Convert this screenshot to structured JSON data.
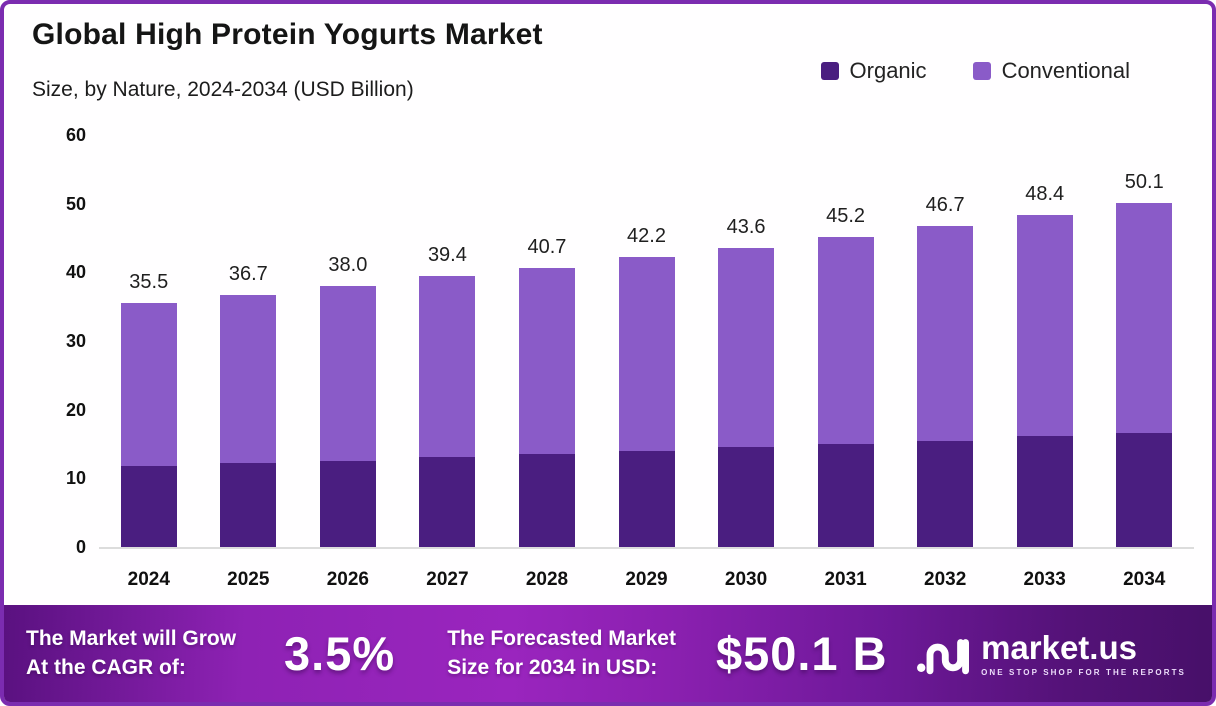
{
  "page": {
    "title": "Global High Protein Yogurts Market",
    "subtitle": "Size, by Nature, 2024-2034 (USD Billion)"
  },
  "legend": [
    {
      "label": "Organic",
      "color": "#4A1E80"
    },
    {
      "label": "Conventional",
      "color": "#8A5BC8"
    }
  ],
  "chart_data": {
    "type": "bar",
    "stacked": true,
    "categories": [
      "2024",
      "2025",
      "2026",
      "2027",
      "2028",
      "2029",
      "2030",
      "2031",
      "2032",
      "2033",
      "2034"
    ],
    "series": [
      {
        "name": "Organic",
        "color": "#4A1E80",
        "values": [
          11.8,
          12.2,
          12.6,
          13.1,
          13.5,
          14.0,
          14.5,
          15.0,
          15.5,
          16.1,
          16.6
        ]
      },
      {
        "name": "Conventional",
        "color": "#8A5BC8",
        "values": [
          23.7,
          24.5,
          25.4,
          26.3,
          27.2,
          28.2,
          29.1,
          30.2,
          31.2,
          32.3,
          33.5
        ]
      }
    ],
    "total_labels": [
      "35.5",
      "36.7",
      "38.0",
      "39.4",
      "40.7",
      "42.2",
      "43.6",
      "45.2",
      "46.7",
      "48.4",
      "50.1"
    ],
    "title": "Global High Protein Yogurts Market Size, by Nature, 2024-2034 (USD Billion)",
    "xlabel": "",
    "ylabel": "",
    "ylim": [
      0,
      60
    ],
    "yticks": [
      0,
      10,
      20,
      30,
      40,
      50,
      60
    ],
    "grid": false,
    "legend_position": "top-right"
  },
  "footer": {
    "cagr_line1": "The Market will Grow",
    "cagr_line2": "At the CAGR of:",
    "cagr_value": "3.5%",
    "forecast_line1": "The Forecasted Market",
    "forecast_line2": "Size for 2034 in USD:",
    "forecast_value": "$50.1 B",
    "brand_name": "market.us",
    "brand_tagline": "One Stop Shop For The Reports"
  },
  "colors": {
    "page_border": "#7B2CB0",
    "organic": "#4A1E80",
    "conventional": "#8A5BC8",
    "axis_line": "#dcdcdc",
    "footer_gradient_start": "#5a1180",
    "footer_gradient_mid": "#9a25be",
    "footer_gradient_end": "#471069"
  }
}
